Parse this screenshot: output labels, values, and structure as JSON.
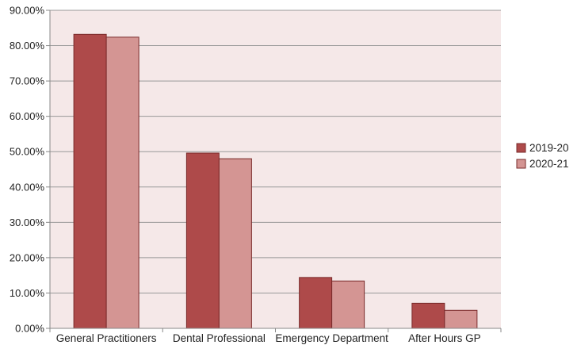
{
  "chart_data": {
    "type": "bar",
    "categories": [
      "General Practitioners",
      "Dental Professional",
      "Emergency Department",
      "After Hours GP"
    ],
    "series": [
      {
        "name": "2019-20",
        "values": [
          83.2,
          49.6,
          14.4,
          7.1
        ],
        "color": "#ae4a4a"
      },
      {
        "name": "2020-21",
        "values": [
          82.4,
          48.0,
          13.4,
          5.1
        ],
        "color": "#d49593"
      }
    ],
    "ylim": [
      0,
      90
    ],
    "yticks": [
      "0.00%",
      "10.00%",
      "20.00%",
      "30.00%",
      "40.00%",
      "50.00%",
      "60.00%",
      "70.00%",
      "80.00%",
      "90.00%"
    ],
    "grid": true,
    "legend": "right",
    "plot_background": "#f5e8e8",
    "gridline_color": "#999999"
  }
}
